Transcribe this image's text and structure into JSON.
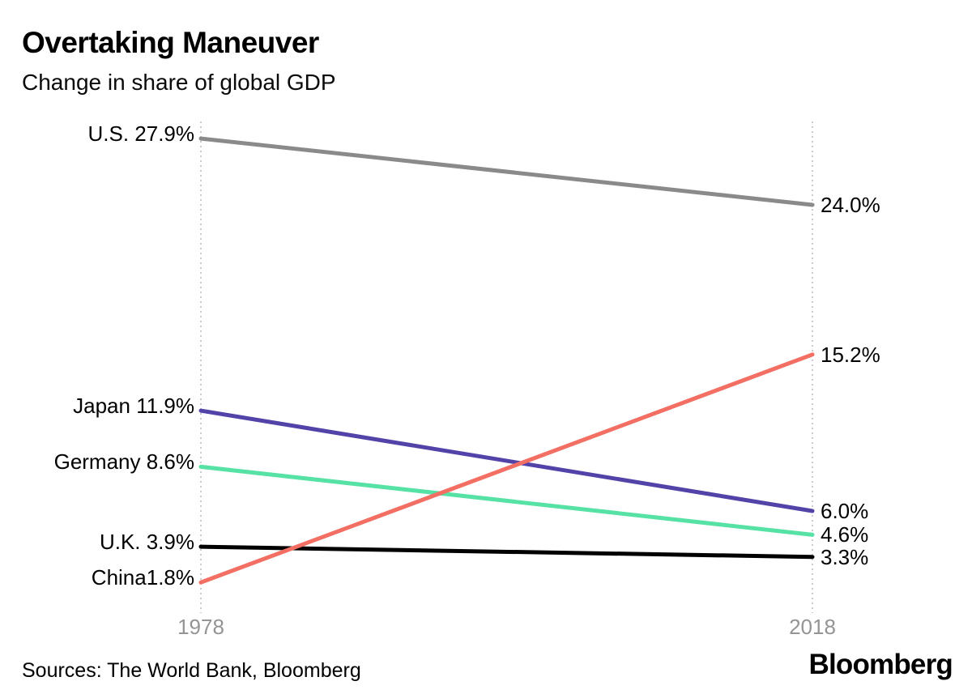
{
  "header": {
    "title": "Overtaking Maneuver",
    "subtitle": "Change in share of global GDP"
  },
  "chart_data": {
    "type": "line",
    "subtype": "slopegraph",
    "title": "Overtaking Maneuver",
    "subtitle": "Change in share of global GDP",
    "categories": [
      "1978",
      "2018"
    ],
    "series": [
      {
        "name": "U.S.",
        "values": [
          27.9,
          24.0
        ],
        "label_left": "U.S. 27.9%",
        "label_right": "24.0%",
        "color": "#8a8a8a"
      },
      {
        "name": "Japan",
        "values": [
          11.9,
          6.0
        ],
        "label_left": "Japan 11.9%",
        "label_right": "6.0%",
        "color": "#5143a8"
      },
      {
        "name": "Germany",
        "values": [
          8.6,
          4.6
        ],
        "label_left": "Germany 8.6%",
        "label_right": "4.6%",
        "color": "#56e2a4"
      },
      {
        "name": "U.K.",
        "values": [
          3.9,
          3.3
        ],
        "label_left": "U.K. 3.9%",
        "label_right": "3.3%",
        "color": "#000000"
      },
      {
        "name": "China",
        "values": [
          1.8,
          15.2
        ],
        "label_left": "China1.8%",
        "label_right": "15.2%",
        "color": "#f36e63"
      }
    ],
    "ylim": [
      0,
      28.9
    ],
    "unit": "%",
    "grid": "two dotted vertical axis lines at each year",
    "legend": "inline labels at line endpoints",
    "axis_label_color": "#949494",
    "dotted_axis_color": "#cbcbcb"
  },
  "footer": {
    "sources": "Sources: The World Bank, Bloomberg",
    "brand": "Bloomberg"
  }
}
